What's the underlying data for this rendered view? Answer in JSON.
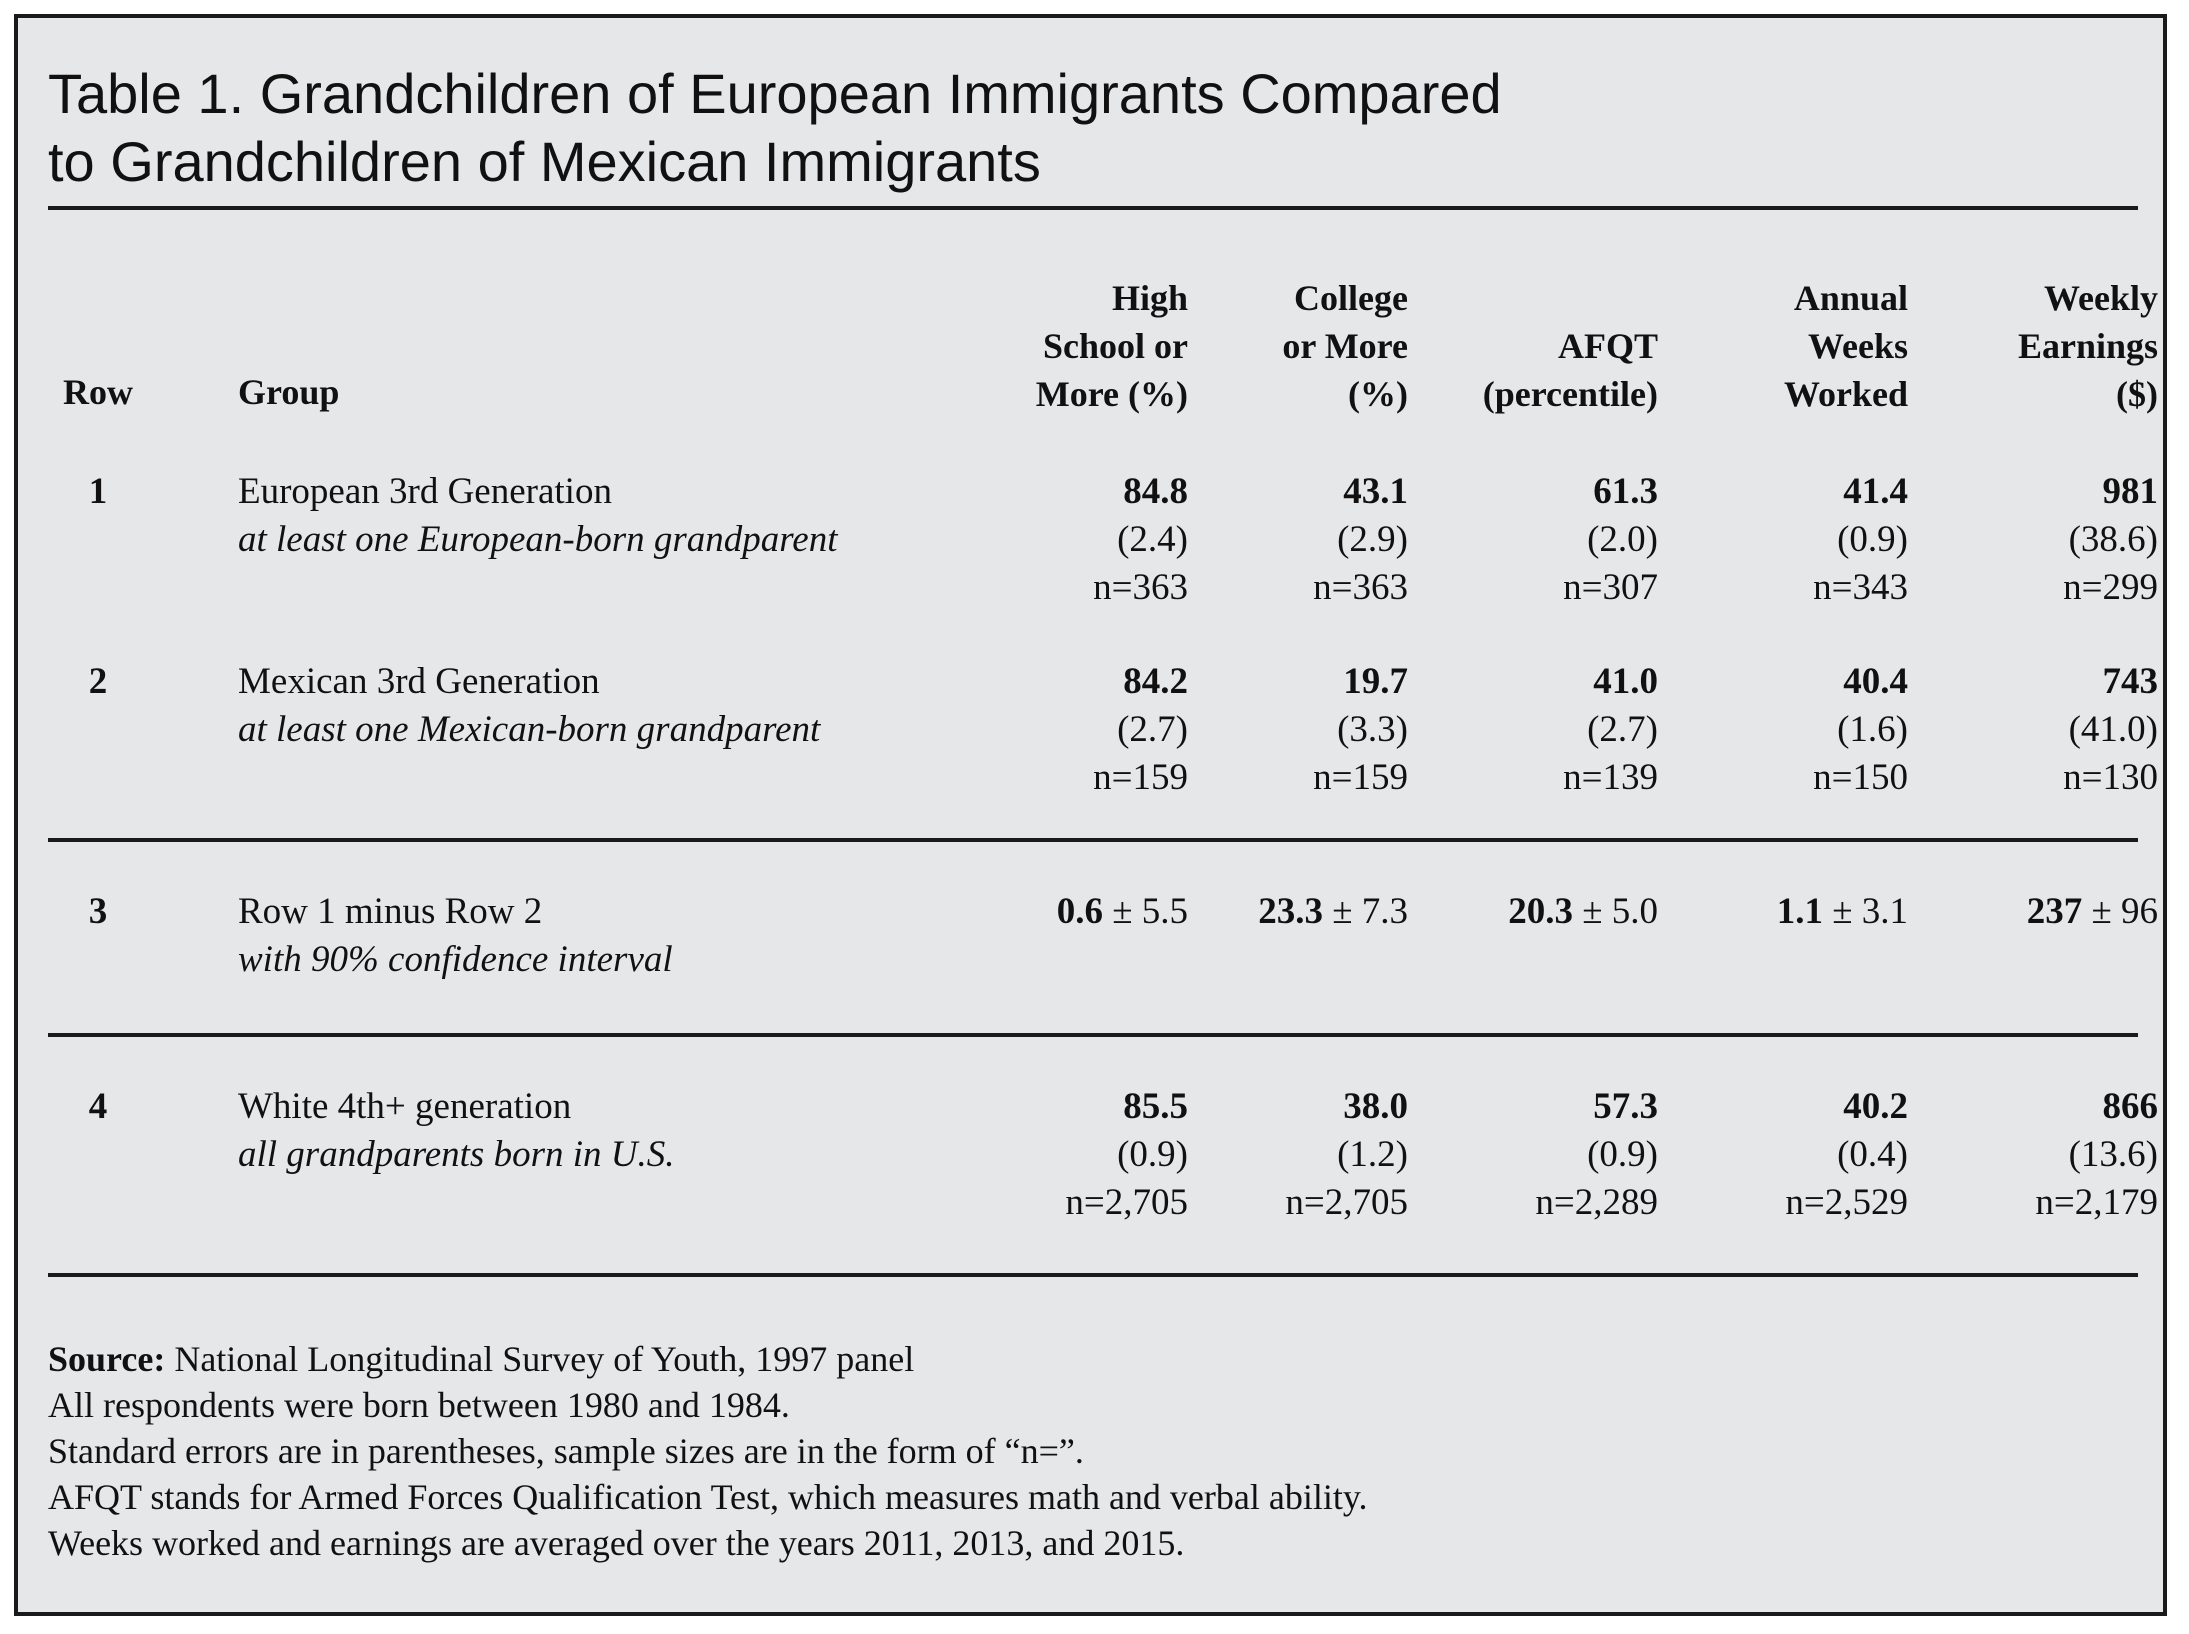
{
  "title": "Table 1. Grandchildren of European Immigrants Compared\nto Grandchildren of Mexican Immigrants",
  "headers": {
    "row": "Row",
    "group": "Group",
    "hs": "High\nSchool or\nMore (%)",
    "college": "College\nor More\n(%)",
    "afqt": "AFQT\n(percentile)",
    "weeks": "Annual\nWeeks\nWorked",
    "earnings": "Weekly\nEarnings\n($)"
  },
  "rows": [
    {
      "num": "1",
      "group": "European 3rd Generation",
      "sub": "at least one European-born grandparent",
      "cols": [
        {
          "v": "84.8",
          "se": "(2.4)",
          "n": "n=363"
        },
        {
          "v": "43.1",
          "se": "(2.9)",
          "n": "n=363"
        },
        {
          "v": "61.3",
          "se": "(2.0)",
          "n": "n=307"
        },
        {
          "v": "41.4",
          "se": "(0.9)",
          "n": "n=343"
        },
        {
          "v": "981",
          "se": "(38.6)",
          "n": "n=299"
        }
      ]
    },
    {
      "num": "2",
      "group": "Mexican 3rd Generation",
      "sub": "at least one Mexican-born grandparent",
      "cols": [
        {
          "v": "84.2",
          "se": "(2.7)",
          "n": "n=159"
        },
        {
          "v": "19.7",
          "se": "(3.3)",
          "n": "n=159"
        },
        {
          "v": "41.0",
          "se": "(2.7)",
          "n": "n=139"
        },
        {
          "v": "40.4",
          "se": "(1.6)",
          "n": "n=150"
        },
        {
          "v": "743",
          "se": "(41.0)",
          "n": "n=130"
        }
      ]
    },
    {
      "num": "3",
      "group": "Row 1 minus Row 2",
      "sub": "with 90% confidence interval",
      "cols": [
        {
          "v": "0.6",
          "ci": " ± 5.5"
        },
        {
          "v": "23.3",
          "ci": " ± 7.3"
        },
        {
          "v": "20.3",
          "ci": " ± 5.0"
        },
        {
          "v": "1.1",
          "ci": " ± 3.1"
        },
        {
          "v": "237",
          "ci": " ± 96"
        }
      ]
    },
    {
      "num": "4",
      "group": "White 4th+ generation",
      "sub": "all grandparents born in U.S.",
      "cols": [
        {
          "v": "85.5",
          "se": "(0.9)",
          "n": "n=2,705"
        },
        {
          "v": "38.0",
          "se": "(1.2)",
          "n": "n=2,705"
        },
        {
          "v": "57.3",
          "se": "(0.9)",
          "n": "n=2,289"
        },
        {
          "v": "40.2",
          "se": "(0.4)",
          "n": "n=2,529"
        },
        {
          "v": "866",
          "se": "(13.6)",
          "n": "n=2,179"
        }
      ]
    }
  ],
  "notes": {
    "source_label": "Source:",
    "source_text": " National Longitudinal Survey of Youth, 1997 panel",
    "line2": "All respondents were born between 1980 and 1984.",
    "line3": "Standard errors are in parentheses, sample sizes are in the form of “n=”.",
    "line4": "AFQT stands for Armed Forces Qualification Test, which measures math and verbal ability.",
    "line5": "Weeks worked and earnings are averaged over the years 2011, 2013, and 2015."
  }
}
